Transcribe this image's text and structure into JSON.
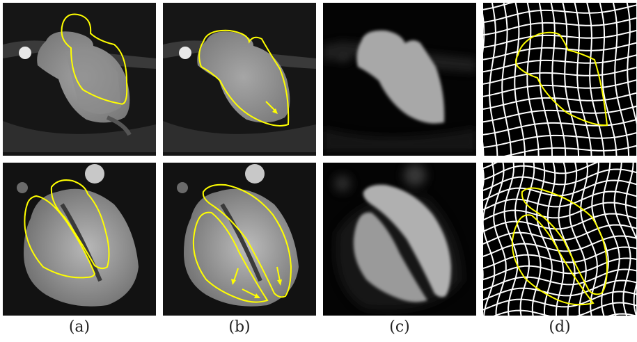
{
  "figure": {
    "captions": [
      "(a)",
      "(b)",
      "(c)",
      "(d)"
    ],
    "rows": 2,
    "columns": 4,
    "contour_color": "#ffff00",
    "grid_color": "#ffffff",
    "background_color": "#000000"
  }
}
